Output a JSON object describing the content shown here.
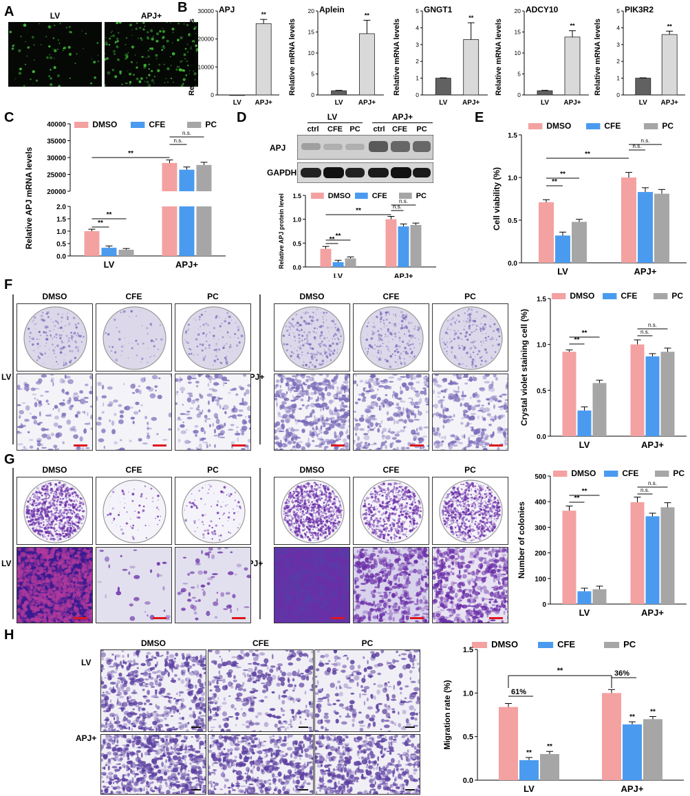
{
  "panels": {
    "A": "A",
    "B": "B",
    "C": "C",
    "D": "D",
    "E": "E",
    "F": "F",
    "G": "G",
    "H": "H"
  },
  "panelA": {
    "labels": [
      "LV",
      "APJ+"
    ]
  },
  "panelD": {
    "group_labels": [
      "LV",
      "APJ+"
    ],
    "lane_labels": [
      "ctrl",
      "CFE",
      "PC",
      "ctrl",
      "CFE",
      "PC"
    ],
    "blot_labels": [
      "APJ",
      "GAPDH"
    ]
  },
  "panelF": {
    "col_labels": [
      "DMSO",
      "CFE",
      "PC",
      "DMSO",
      "CFE",
      "PC"
    ],
    "row_labels": [
      "LV",
      "APJ+"
    ]
  },
  "panelG": {
    "col_labels": [
      "DMSO",
      "CFE",
      "PC",
      "DMSO",
      "CFE",
      "PC"
    ],
    "row_labels": [
      "LV",
      "APJ+"
    ]
  },
  "panelH": {
    "col_labels": [
      "DMSO",
      "CFE",
      "PC"
    ],
    "row_labels": [
      "LV",
      "APJ+"
    ]
  },
  "colors": {
    "dmso": "#f4a1a1",
    "cfe": "#4a9bf0",
    "pc": "#a6a6a6",
    "lv_bar": "#616161",
    "apj_bar": "#d9d9d9",
    "crystal": "#7a6ab8",
    "colony": "#6b2fa8",
    "fluor": "#46c23a"
  },
  "chart_data": [
    {
      "id": "B1",
      "type": "bar",
      "title": "APJ",
      "ylabel": "Relative mRNA levels",
      "categories": [
        "LV",
        "APJ+"
      ],
      "values": [
        1,
        25500
      ],
      "errors": [
        0,
        1500
      ],
      "ylim": [
        0,
        30000
      ],
      "yticks": [
        "0",
        "10000",
        "20000",
        "30000"
      ],
      "annotations": [
        "",
        "**"
      ]
    },
    {
      "id": "B2",
      "type": "bar",
      "title": "Aplein",
      "ylabel": "Relative mRNA levels",
      "categories": [
        "LV",
        "APJ+"
      ],
      "values": [
        1,
        14.6
      ],
      "errors": [
        0.1,
        3.2
      ],
      "ylim": [
        0,
        20
      ],
      "yticks": [
        "0",
        "5",
        "10",
        "15",
        "20"
      ],
      "annotations": [
        "",
        "**"
      ]
    },
    {
      "id": "B3",
      "type": "bar",
      "title": "GNGT1",
      "ylabel": "Relative mRNA levels",
      "categories": [
        "LV",
        "APJ+"
      ],
      "values": [
        1,
        3.3
      ],
      "errors": [
        0.02,
        1.0
      ],
      "ylim": [
        0,
        5
      ],
      "yticks": [
        "0",
        "1",
        "2",
        "3",
        "4",
        "5"
      ],
      "annotations": [
        "",
        "**"
      ]
    },
    {
      "id": "B4",
      "type": "bar",
      "title": "ADCY10",
      "ylabel": "Relative mRNA levels",
      "categories": [
        "LV",
        "APJ+"
      ],
      "values": [
        1,
        13.8
      ],
      "errors": [
        0.1,
        1.5
      ],
      "ylim": [
        0,
        20
      ],
      "yticks": [
        "0",
        "5",
        "10",
        "15",
        "20"
      ],
      "annotations": [
        "",
        "**"
      ]
    },
    {
      "id": "B5",
      "type": "bar",
      "title": "PIK3R2",
      "ylabel": "Relative mRNA levels",
      "categories": [
        "LV",
        "APJ+"
      ],
      "values": [
        1,
        3.6
      ],
      "errors": [
        0.02,
        0.2
      ],
      "ylim": [
        0,
        5
      ],
      "yticks": [
        "0",
        "1",
        "2",
        "3",
        "4",
        "5"
      ],
      "annotations": [
        "",
        "**"
      ]
    },
    {
      "id": "C",
      "type": "bar",
      "ylabel": "Relative APJ mRNA levels",
      "broken_axis": true,
      "categories": [
        "LV",
        "APJ+"
      ],
      "series": [
        {
          "name": "DMSO",
          "values": [
            1.0,
            28400
          ],
          "errors": [
            0.08,
            900
          ]
        },
        {
          "name": "CFE",
          "values": [
            0.33,
            26400
          ],
          "errors": [
            0.07,
            800
          ]
        },
        {
          "name": "PC",
          "values": [
            0.25,
            27800
          ],
          "errors": [
            0.05,
            800
          ]
        }
      ],
      "yticks_top": [
        "20000",
        "25000",
        "30000",
        "35000",
        "40000"
      ],
      "yticks_bottom": [
        "0.0",
        "0.5",
        "1.0",
        "1.5",
        "2.0"
      ],
      "sig": [
        "**",
        "**",
        "**",
        "n.s.",
        "n.s."
      ]
    },
    {
      "id": "D",
      "type": "bar",
      "ylabel": "Relative APJ protein level",
      "categories": [
        "LV",
        "APJ+"
      ],
      "series": [
        {
          "name": "DMSO",
          "values": [
            0.38,
            1.0
          ],
          "errors": [
            0.05,
            0.06
          ]
        },
        {
          "name": "CFE",
          "values": [
            0.1,
            0.85
          ],
          "errors": [
            0.04,
            0.05
          ]
        },
        {
          "name": "PC",
          "values": [
            0.18,
            0.88
          ],
          "errors": [
            0.03,
            0.04
          ]
        }
      ],
      "ylim": [
        0,
        1.5
      ],
      "yticks": [
        "0.0",
        "0.5",
        "1.0",
        "1.5"
      ],
      "sig": [
        "**",
        "**",
        "**",
        "n.s.",
        "n.s."
      ]
    },
    {
      "id": "E",
      "type": "bar",
      "ylabel": "Cell viability (%)",
      "categories": [
        "LV",
        "APJ+"
      ],
      "series": [
        {
          "name": "DMSO",
          "values": [
            0.71,
            1.0
          ],
          "errors": [
            0.03,
            0.06
          ]
        },
        {
          "name": "CFE",
          "values": [
            0.32,
            0.83
          ],
          "errors": [
            0.04,
            0.05
          ]
        },
        {
          "name": "PC",
          "values": [
            0.48,
            0.81
          ],
          "errors": [
            0.03,
            0.05
          ]
        }
      ],
      "ylim": [
        0,
        1.5
      ],
      "yticks": [
        "0.0",
        "0.5",
        "1.0",
        "1.5"
      ],
      "sig": [
        "**",
        "**",
        "**",
        "n.s.",
        "n.s."
      ]
    },
    {
      "id": "F",
      "type": "bar",
      "ylabel": "Crystal violet staining cell (%)",
      "categories": [
        "LV",
        "APJ+"
      ],
      "series": [
        {
          "name": "DMSO",
          "values": [
            0.92,
            1.0
          ],
          "errors": [
            0.02,
            0.05
          ]
        },
        {
          "name": "CFE",
          "values": [
            0.28,
            0.87
          ],
          "errors": [
            0.04,
            0.03
          ]
        },
        {
          "name": "PC",
          "values": [
            0.58,
            0.92
          ],
          "errors": [
            0.03,
            0.04
          ]
        }
      ],
      "ylim": [
        0,
        1.5
      ],
      "yticks": [
        "0.0",
        "0.5",
        "1.0",
        "1.5"
      ],
      "sig": [
        "**",
        "**",
        "**",
        "n.s.",
        "n.s."
      ]
    },
    {
      "id": "G",
      "type": "bar",
      "ylabel": "Number of colonies",
      "categories": [
        "LV",
        "APJ+"
      ],
      "series": [
        {
          "name": "DMSO",
          "values": [
            365,
            398
          ],
          "errors": [
            18,
            20
          ]
        },
        {
          "name": "CFE",
          "values": [
            50,
            343
          ],
          "errors": [
            12,
            12
          ]
        },
        {
          "name": "PC",
          "values": [
            58,
            378
          ],
          "errors": [
            12,
            18
          ]
        }
      ],
      "ylim": [
        0,
        500
      ],
      "yticks": [
        "0",
        "100",
        "200",
        "300",
        "400",
        "500"
      ],
      "sig": [
        "**",
        "**",
        "**",
        "n.s.",
        "n.s."
      ]
    },
    {
      "id": "H",
      "type": "bar",
      "ylabel": "Migration rate (%)",
      "categories": [
        "LV",
        "APJ+"
      ],
      "series": [
        {
          "name": "DMSO",
          "values": [
            0.84,
            1.0
          ],
          "errors": [
            0.04,
            0.04
          ]
        },
        {
          "name": "CFE",
          "values": [
            0.23,
            0.64
          ],
          "errors": [
            0.03,
            0.03
          ]
        },
        {
          "name": "PC",
          "values": [
            0.3,
            0.7
          ],
          "errors": [
            0.03,
            0.03
          ]
        }
      ],
      "ylim": [
        0,
        1.5
      ],
      "yticks": [
        "0.0",
        "0.5",
        "1.0",
        "1.5"
      ],
      "pct_labels": [
        "61%",
        "36%"
      ],
      "sig": [
        "**",
        "**",
        "**",
        "**",
        "**"
      ]
    }
  ]
}
